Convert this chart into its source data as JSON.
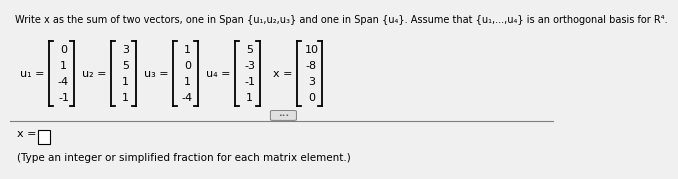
{
  "title": "Write x as the sum of two vectors, one in Span {u₁,u₂,u₃} and one in Span {u₄}. Assume that {u₁,...,u₄} is an orthogonal basis for R⁴.",
  "background_color": "#f0f0f0",
  "u1": [
    0,
    1,
    -4,
    -1
  ],
  "u2": [
    3,
    5,
    1,
    1
  ],
  "u3": [
    1,
    0,
    1,
    -4
  ],
  "u4": [
    5,
    -3,
    -1,
    1
  ],
  "x": [
    10,
    -8,
    3,
    0
  ],
  "answer_note": "(Type an integer or simplified fraction for each matrix element.)"
}
